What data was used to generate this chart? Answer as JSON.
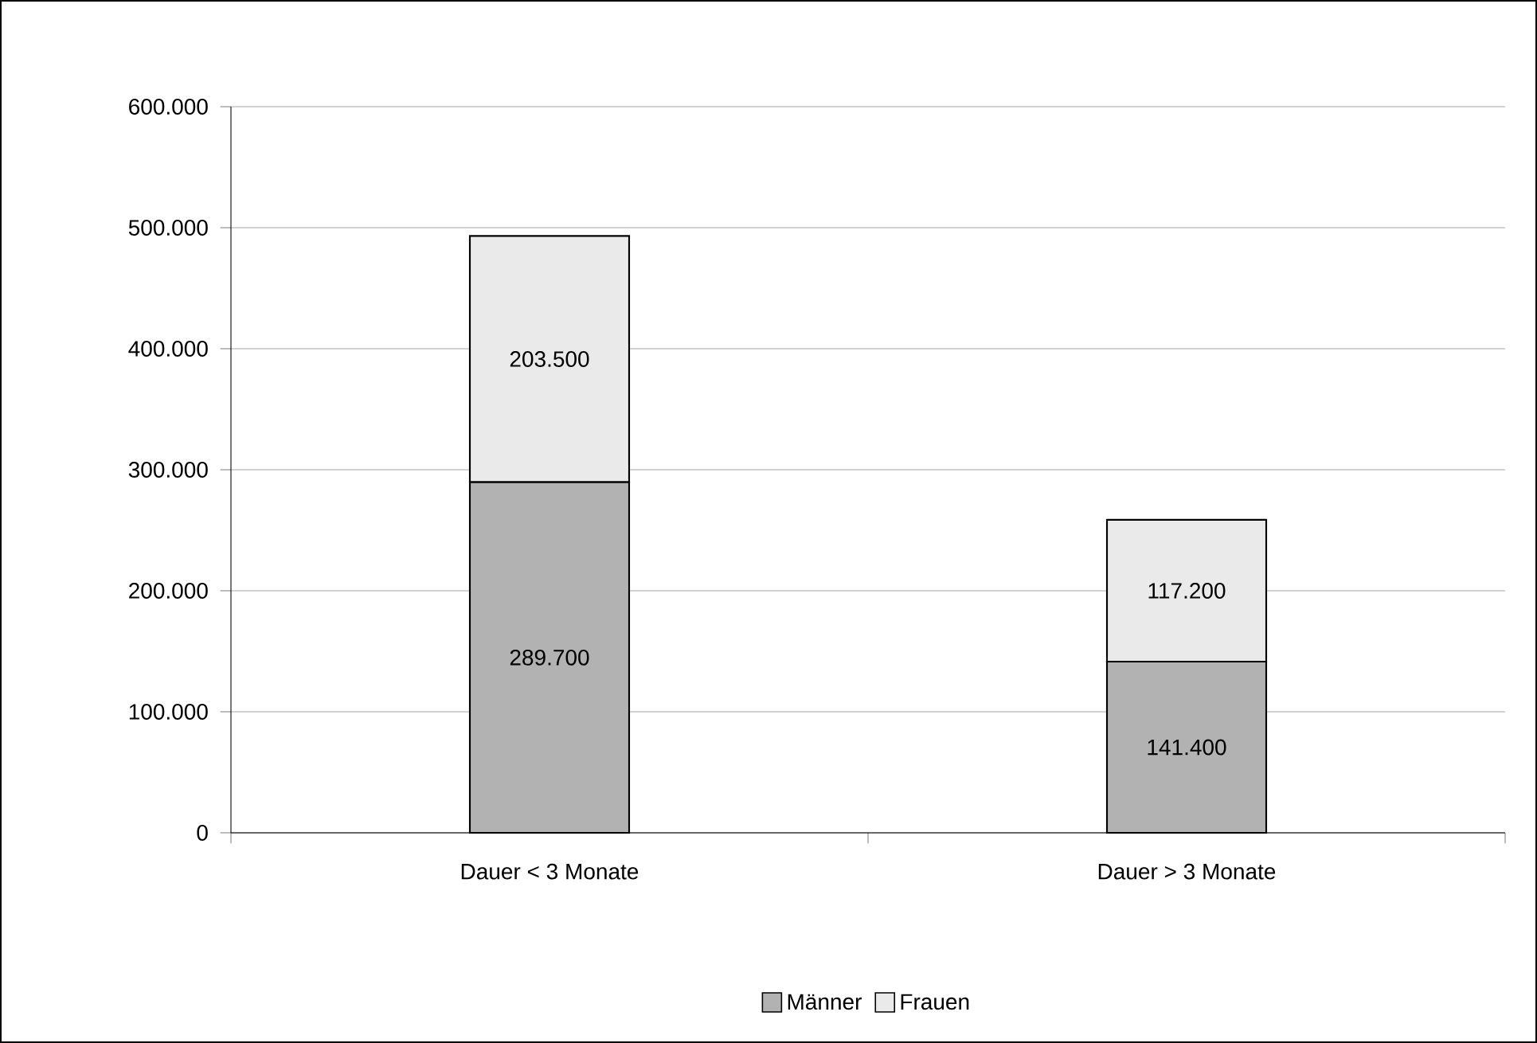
{
  "chart_data": {
    "type": "bar",
    "stacked": true,
    "categories": [
      "Dauer < 3 Monate",
      "Dauer > 3 Monate"
    ],
    "series": [
      {
        "name": "Männer",
        "color": "#b2b2b2",
        "values": [
          289700,
          141400
        ],
        "value_labels": [
          "289.700",
          "141.400"
        ]
      },
      {
        "name": "Frauen",
        "color": "#eaeaea",
        "values": [
          203500,
          117200
        ],
        "value_labels": [
          "203.500",
          "117.200"
        ]
      }
    ],
    "ylim": [
      0,
      600000
    ],
    "yticks": [
      0,
      {
        "value": 100000,
        "label": "100.000"
      },
      {
        "value": 200000,
        "label": "200.000"
      },
      {
        "value": 300000,
        "label": "300.000"
      },
      {
        "value": 400000,
        "label": "400.000"
      },
      {
        "value": 500000,
        "label": "500.000"
      },
      {
        "value": 600000,
        "label": "600.000"
      }
    ],
    "grid": "y",
    "legend": "bottom"
  }
}
